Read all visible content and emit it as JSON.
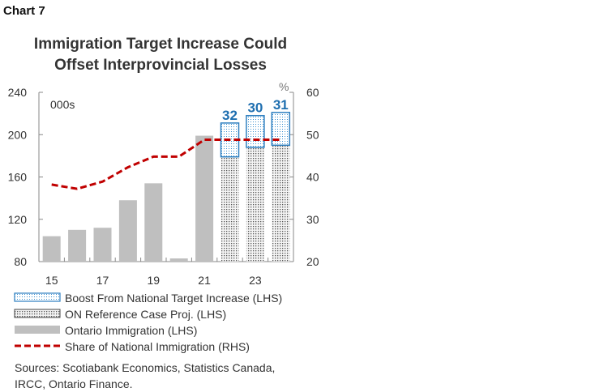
{
  "header": {
    "chart_label": "Chart 7",
    "title_line1": "Immigration Target Increase Could",
    "title_line2": "Offset Interprovincial Losses"
  },
  "sources": {
    "line1": "Sources: Scotiabank Economics, Statistics Canada,",
    "line2": "IRCC, Ontario Finance."
  },
  "colors": {
    "ontario_bar": "#bfbfbf",
    "projection_pattern": "#555555",
    "boost_border": "#2e7fc0",
    "boost_pattern": "#3a8fd0",
    "share_line": "#c00000",
    "data_label": "#1f6fb0",
    "axis": "#888888"
  },
  "chart_data": {
    "type": "bar",
    "left_axis": {
      "unit_label": "000s",
      "ylim": [
        80,
        240
      ],
      "ticks": [
        80,
        120,
        160,
        200,
        240
      ]
    },
    "right_axis": {
      "unit_label": "%",
      "ylim": [
        20,
        60
      ],
      "ticks": [
        20,
        30,
        40,
        50,
        60
      ]
    },
    "x": {
      "categories": [
        "15",
        "16",
        "17",
        "18",
        "19",
        "20",
        "21",
        "22",
        "23",
        "24"
      ],
      "tick_labels": [
        "15",
        "17",
        "19",
        "21",
        "23"
      ]
    },
    "series": [
      {
        "name": "Boost From National Target Increase (LHS)",
        "kind": "stacked-bar",
        "axis": "left",
        "base": [
          null,
          null,
          null,
          null,
          null,
          null,
          null,
          179,
          188,
          190
        ],
        "values": [
          null,
          null,
          null,
          null,
          null,
          null,
          null,
          32,
          30,
          31
        ],
        "labels": [
          null,
          null,
          null,
          null,
          null,
          null,
          null,
          "32",
          "30",
          "31"
        ]
      },
      {
        "name": "ON Reference Case Proj. (LHS)",
        "kind": "bar",
        "axis": "left",
        "values": [
          null,
          null,
          null,
          null,
          null,
          null,
          null,
          179,
          188,
          190
        ]
      },
      {
        "name": "Ontario Immigration (LHS)",
        "kind": "bar",
        "axis": "left",
        "values": [
          104,
          110,
          112,
          138,
          154,
          83,
          199,
          null,
          null,
          null
        ]
      },
      {
        "name": "Share of National Immigration (RHS)",
        "kind": "line",
        "axis": "right",
        "values": [
          38.2,
          37.2,
          38.9,
          42.3,
          44.8,
          44.8,
          48.8,
          48.8,
          48.8,
          48.8
        ]
      }
    ],
    "grid": false,
    "legend_position": "bottom"
  }
}
